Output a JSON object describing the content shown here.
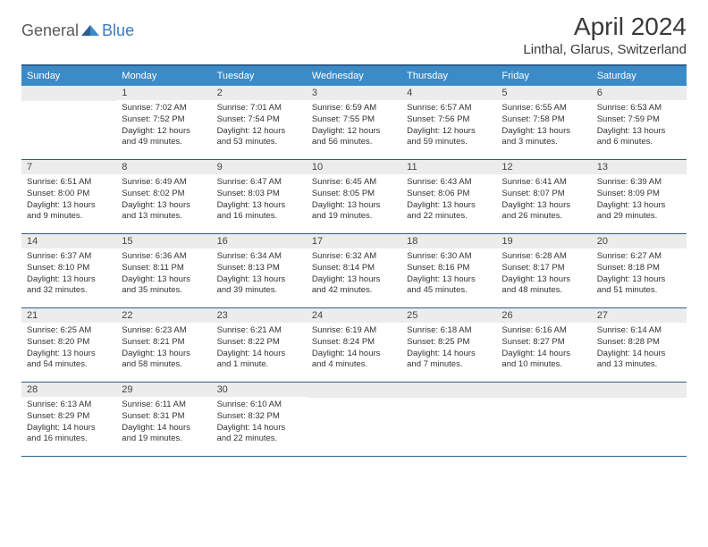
{
  "logo": {
    "text1": "General",
    "text2": "Blue"
  },
  "month_title": "April 2024",
  "location": "Linthal, Glarus, Switzerland",
  "colors": {
    "header_bg": "#3B8BC8",
    "border": "#2d5f8f",
    "daynum_bg": "#ececec",
    "logo_blue": "#3B7BBF"
  },
  "dow": [
    "Sunday",
    "Monday",
    "Tuesday",
    "Wednesday",
    "Thursday",
    "Friday",
    "Saturday"
  ],
  "weeks": [
    [
      null,
      {
        "n": "1",
        "sr": "Sunrise: 7:02 AM",
        "ss": "Sunset: 7:52 PM",
        "dl": "Daylight: 12 hours and 49 minutes."
      },
      {
        "n": "2",
        "sr": "Sunrise: 7:01 AM",
        "ss": "Sunset: 7:54 PM",
        "dl": "Daylight: 12 hours and 53 minutes."
      },
      {
        "n": "3",
        "sr": "Sunrise: 6:59 AM",
        "ss": "Sunset: 7:55 PM",
        "dl": "Daylight: 12 hours and 56 minutes."
      },
      {
        "n": "4",
        "sr": "Sunrise: 6:57 AM",
        "ss": "Sunset: 7:56 PM",
        "dl": "Daylight: 12 hours and 59 minutes."
      },
      {
        "n": "5",
        "sr": "Sunrise: 6:55 AM",
        "ss": "Sunset: 7:58 PM",
        "dl": "Daylight: 13 hours and 3 minutes."
      },
      {
        "n": "6",
        "sr": "Sunrise: 6:53 AM",
        "ss": "Sunset: 7:59 PM",
        "dl": "Daylight: 13 hours and 6 minutes."
      }
    ],
    [
      {
        "n": "7",
        "sr": "Sunrise: 6:51 AM",
        "ss": "Sunset: 8:00 PM",
        "dl": "Daylight: 13 hours and 9 minutes."
      },
      {
        "n": "8",
        "sr": "Sunrise: 6:49 AM",
        "ss": "Sunset: 8:02 PM",
        "dl": "Daylight: 13 hours and 13 minutes."
      },
      {
        "n": "9",
        "sr": "Sunrise: 6:47 AM",
        "ss": "Sunset: 8:03 PM",
        "dl": "Daylight: 13 hours and 16 minutes."
      },
      {
        "n": "10",
        "sr": "Sunrise: 6:45 AM",
        "ss": "Sunset: 8:05 PM",
        "dl": "Daylight: 13 hours and 19 minutes."
      },
      {
        "n": "11",
        "sr": "Sunrise: 6:43 AM",
        "ss": "Sunset: 8:06 PM",
        "dl": "Daylight: 13 hours and 22 minutes."
      },
      {
        "n": "12",
        "sr": "Sunrise: 6:41 AM",
        "ss": "Sunset: 8:07 PM",
        "dl": "Daylight: 13 hours and 26 minutes."
      },
      {
        "n": "13",
        "sr": "Sunrise: 6:39 AM",
        "ss": "Sunset: 8:09 PM",
        "dl": "Daylight: 13 hours and 29 minutes."
      }
    ],
    [
      {
        "n": "14",
        "sr": "Sunrise: 6:37 AM",
        "ss": "Sunset: 8:10 PM",
        "dl": "Daylight: 13 hours and 32 minutes."
      },
      {
        "n": "15",
        "sr": "Sunrise: 6:36 AM",
        "ss": "Sunset: 8:11 PM",
        "dl": "Daylight: 13 hours and 35 minutes."
      },
      {
        "n": "16",
        "sr": "Sunrise: 6:34 AM",
        "ss": "Sunset: 8:13 PM",
        "dl": "Daylight: 13 hours and 39 minutes."
      },
      {
        "n": "17",
        "sr": "Sunrise: 6:32 AM",
        "ss": "Sunset: 8:14 PM",
        "dl": "Daylight: 13 hours and 42 minutes."
      },
      {
        "n": "18",
        "sr": "Sunrise: 6:30 AM",
        "ss": "Sunset: 8:16 PM",
        "dl": "Daylight: 13 hours and 45 minutes."
      },
      {
        "n": "19",
        "sr": "Sunrise: 6:28 AM",
        "ss": "Sunset: 8:17 PM",
        "dl": "Daylight: 13 hours and 48 minutes."
      },
      {
        "n": "20",
        "sr": "Sunrise: 6:27 AM",
        "ss": "Sunset: 8:18 PM",
        "dl": "Daylight: 13 hours and 51 minutes."
      }
    ],
    [
      {
        "n": "21",
        "sr": "Sunrise: 6:25 AM",
        "ss": "Sunset: 8:20 PM",
        "dl": "Daylight: 13 hours and 54 minutes."
      },
      {
        "n": "22",
        "sr": "Sunrise: 6:23 AM",
        "ss": "Sunset: 8:21 PM",
        "dl": "Daylight: 13 hours and 58 minutes."
      },
      {
        "n": "23",
        "sr": "Sunrise: 6:21 AM",
        "ss": "Sunset: 8:22 PM",
        "dl": "Daylight: 14 hours and 1 minute."
      },
      {
        "n": "24",
        "sr": "Sunrise: 6:19 AM",
        "ss": "Sunset: 8:24 PM",
        "dl": "Daylight: 14 hours and 4 minutes."
      },
      {
        "n": "25",
        "sr": "Sunrise: 6:18 AM",
        "ss": "Sunset: 8:25 PM",
        "dl": "Daylight: 14 hours and 7 minutes."
      },
      {
        "n": "26",
        "sr": "Sunrise: 6:16 AM",
        "ss": "Sunset: 8:27 PM",
        "dl": "Daylight: 14 hours and 10 minutes."
      },
      {
        "n": "27",
        "sr": "Sunrise: 6:14 AM",
        "ss": "Sunset: 8:28 PM",
        "dl": "Daylight: 14 hours and 13 minutes."
      }
    ],
    [
      {
        "n": "28",
        "sr": "Sunrise: 6:13 AM",
        "ss": "Sunset: 8:29 PM",
        "dl": "Daylight: 14 hours and 16 minutes."
      },
      {
        "n": "29",
        "sr": "Sunrise: 6:11 AM",
        "ss": "Sunset: 8:31 PM",
        "dl": "Daylight: 14 hours and 19 minutes."
      },
      {
        "n": "30",
        "sr": "Sunrise: 6:10 AM",
        "ss": "Sunset: 8:32 PM",
        "dl": "Daylight: 14 hours and 22 minutes."
      },
      null,
      null,
      null,
      null
    ]
  ]
}
